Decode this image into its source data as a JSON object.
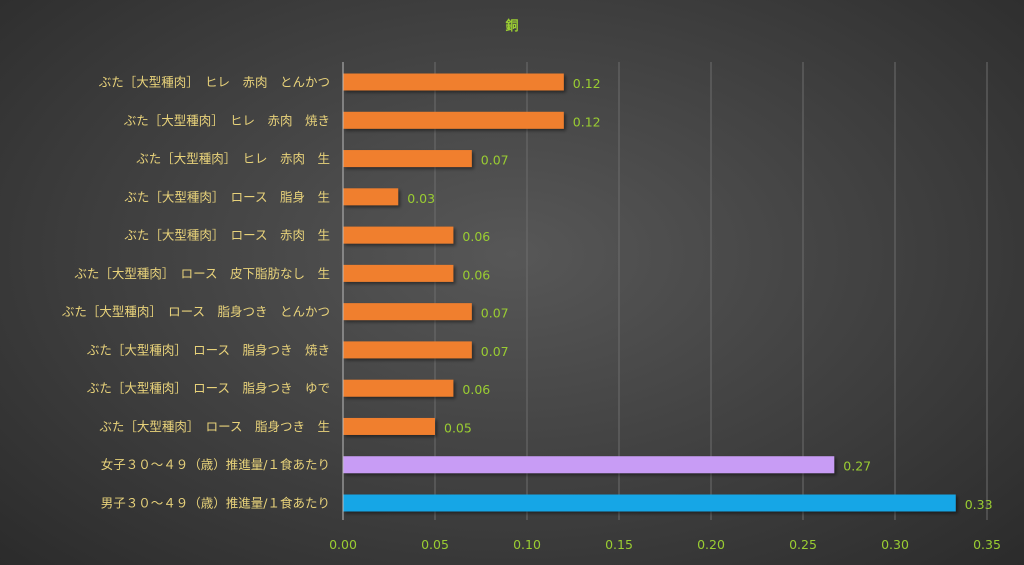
{
  "chart_data": {
    "type": "bar",
    "orientation": "horizontal",
    "title": "銅",
    "xlim": [
      0,
      0.35
    ],
    "x_ticks": [
      "0.00",
      "0.05",
      "0.10",
      "0.15",
      "0.20",
      "0.25",
      "0.30",
      "0.35"
    ],
    "grid": true,
    "categories": [
      "ぶた［大型種肉］　ヒレ　赤肉　とんかつ",
      "ぶた［大型種肉］　ヒレ　赤肉　焼き",
      "ぶた［大型種肉］　ヒレ　赤肉　生",
      "ぶた［大型種肉］　ロース　脂身　生",
      "ぶた［大型種肉］　ロース　赤肉　生",
      "ぶた［大型種肉］　ロース　皮下脂肪なし　生",
      "ぶた［大型種肉］　ロース　脂身つき　とんかつ",
      "ぶた［大型種肉］　ロース　脂身つき　焼き",
      "ぶた［大型種肉］　ロース　脂身つき　ゆで",
      "ぶた［大型種肉］　ロース　脂身つき　生",
      "女子３０～４９（歳）推進量/１食あたり",
      "男子３０～４９（歳）推進量/１食あたり"
    ],
    "values": [
      0.12,
      0.12,
      0.07,
      0.03,
      0.06,
      0.06,
      0.07,
      0.07,
      0.06,
      0.05,
      0.267,
      0.333
    ],
    "value_labels": [
      "0.12",
      "0.12",
      "0.07",
      "0.03",
      "0.06",
      "0.06",
      "0.07",
      "0.07",
      "0.06",
      "0.05",
      "0.27",
      "0.33"
    ],
    "colors": [
      "#f07f2d",
      "#f07f2d",
      "#f07f2d",
      "#f07f2d",
      "#f07f2d",
      "#f07f2d",
      "#f07f2d",
      "#f07f2d",
      "#f07f2d",
      "#f07f2d",
      "#c89cf5",
      "#12a6e6"
    ]
  }
}
